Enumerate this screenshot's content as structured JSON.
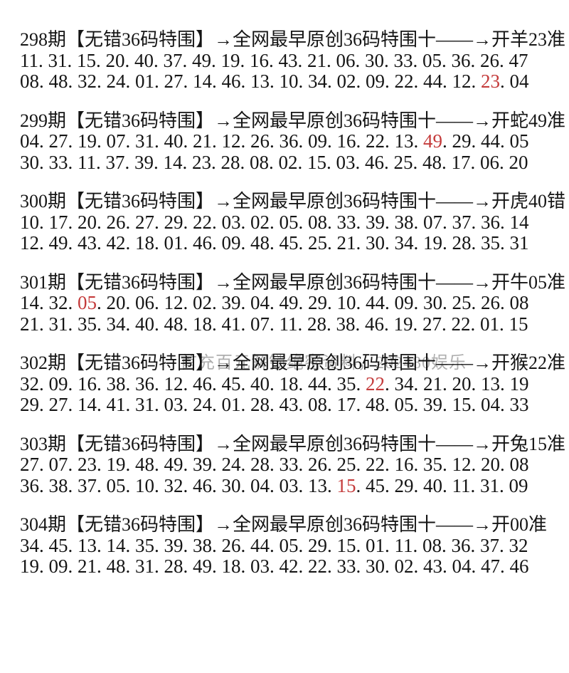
{
  "page": {
    "background": "#ffffff",
    "text_color": "#151515",
    "highlight_color": "#c43b3b"
  },
  "watermark": {
    "text": "首充百元解锁绝密资料，202480娱乐",
    "color": "#8f8f8f"
  },
  "blocks": [
    {
      "header": "298期【无错36码特围】→全网最早原创36码特围十——→开羊23准",
      "line1": [
        "11",
        "31",
        "15",
        "20",
        "40",
        "37",
        "49",
        "19",
        "16",
        "43",
        "21",
        "06",
        "30",
        "33",
        "05",
        "36",
        "26",
        "47"
      ],
      "line2": [
        "08",
        "48",
        "32",
        "24",
        "01",
        "27",
        "14",
        "46",
        "13",
        "10",
        "34",
        "02",
        "09",
        "22",
        "44",
        "12",
        "23",
        "04"
      ],
      "red1": -1,
      "red2": 16
    },
    {
      "header": "299期【无错36码特围】→全网最早原创36码特围十——→开蛇49准",
      "line1": [
        "04",
        "27",
        "19",
        "07",
        "31",
        "40",
        "21",
        "12",
        "26",
        "36",
        "09",
        "16",
        "22",
        "13",
        "49",
        "29",
        "44",
        "05"
      ],
      "line2": [
        "30",
        "33",
        "11",
        "37",
        "39",
        "14",
        "23",
        "28",
        "08",
        "02",
        "15",
        "03",
        "46",
        "25",
        "48",
        "17",
        "06",
        "20"
      ],
      "red1": 14,
      "red2": -1
    },
    {
      "header": "300期【无错36码特围】→全网最早原创36码特围十——→开虎40错",
      "line1": [
        "10",
        "17",
        "20",
        "26",
        "27",
        "29",
        "22",
        "03",
        "02",
        "05",
        "08",
        "33",
        "39",
        "38",
        "07",
        "37",
        "36",
        "14"
      ],
      "line2": [
        "12",
        "49",
        "43",
        "42",
        "18",
        "01",
        "46",
        "09",
        "48",
        "45",
        "25",
        "21",
        "30",
        "34",
        "19",
        "28",
        "35",
        "31"
      ],
      "red1": -1,
      "red2": -1
    },
    {
      "header": "301期【无错36码特围】→全网最早原创36码特围十——→开牛05准",
      "line1": [
        "14",
        "32",
        "05",
        "20",
        "06",
        "12",
        "02",
        "39",
        "04",
        "49",
        "29",
        "10",
        "44",
        "09",
        "30",
        "25",
        "26",
        "08"
      ],
      "line2": [
        "21",
        "31",
        "35",
        "34",
        "40",
        "48",
        "18",
        "41",
        "07",
        "11",
        "28",
        "38",
        "46",
        "19",
        "27",
        "22",
        "01",
        "15"
      ],
      "red1": 2,
      "red2": -1
    },
    {
      "header": "302期【无错36码特围】→全网最早原创36码特围十——→开猴22准",
      "line1": [
        "32",
        "09",
        "16",
        "38",
        "36",
        "12",
        "46",
        "45",
        "40",
        "18",
        "44",
        "35",
        "22",
        "34",
        "21",
        "20",
        "13",
        "19"
      ],
      "line2": [
        "29",
        "27",
        "14",
        "41",
        "31",
        "03",
        "24",
        "01",
        "28",
        "43",
        "08",
        "17",
        "48",
        "05",
        "39",
        "15",
        "04",
        "33"
      ],
      "red1": 12,
      "red2": -1
    },
    {
      "header": "303期【无错36码特围】→全网最早原创36码特围十——→开兔15准",
      "line1": [
        "27",
        "07",
        "23",
        "19",
        "48",
        "49",
        "39",
        "24",
        "28",
        "33",
        "26",
        "25",
        "22",
        "16",
        "35",
        "12",
        "20",
        "08"
      ],
      "line2": [
        "36",
        "38",
        "37",
        "05",
        "10",
        "32",
        "46",
        "30",
        "04",
        "03",
        "13",
        "15",
        "45",
        "29",
        "40",
        "11",
        "31",
        "09"
      ],
      "red1": -1,
      "red2": 11
    },
    {
      "header": "304期【无错36码特围】→全网最早原创36码特围十——→开00准",
      "line1": [
        "34",
        "45",
        "13",
        "14",
        "35",
        "39",
        "38",
        "26",
        "44",
        "05",
        "29",
        "15",
        "01",
        "11",
        "08",
        "36",
        "37",
        "32"
      ],
      "line2": [
        "19",
        "09",
        "21",
        "48",
        "31",
        "28",
        "49",
        "18",
        "03",
        "42",
        "22",
        "33",
        "30",
        "02",
        "43",
        "04",
        "47",
        "46"
      ],
      "red1": -1,
      "red2": -1
    }
  ],
  "separator": ". "
}
